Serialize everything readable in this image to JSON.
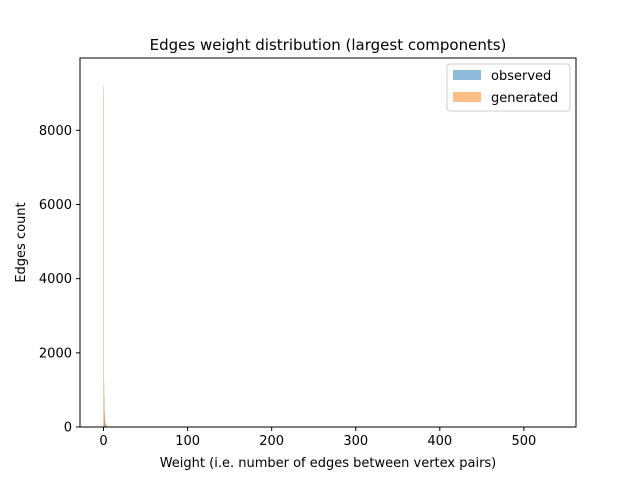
{
  "chart_data": {
    "type": "bar",
    "title": "Edges weight distribution (largest components)",
    "xlabel": "Weight (i.e. number of edges between vertex pairs)",
    "ylabel": "Edges count",
    "xlim": [
      -28,
      562
    ],
    "ylim": [
      0,
      9950
    ],
    "xticks": [
      0,
      100,
      200,
      300,
      400,
      500
    ],
    "yticks": [
      0,
      2000,
      4000,
      6000,
      8000
    ],
    "grid": false,
    "legend_position": "top-right",
    "series": [
      {
        "name": "observed",
        "color": "#1f77b4",
        "alpha": 0.5,
        "bin_edges": [
          0,
          0.5,
          1,
          1.5,
          2,
          2.5,
          3,
          3.5,
          4,
          4.5,
          5
        ],
        "values": [
          9200,
          850,
          350,
          170,
          100,
          70,
          45,
          30,
          20,
          12
        ]
      },
      {
        "name": "generated",
        "color": "#ff7f0e",
        "alpha": 0.5,
        "bin_edges": [
          0,
          0.5,
          1,
          1.5,
          2,
          2.5,
          3,
          3.5,
          4,
          4.5,
          5
        ],
        "values": [
          9000,
          1200,
          480,
          240,
          140,
          90,
          60,
          40,
          25,
          15
        ]
      }
    ]
  }
}
